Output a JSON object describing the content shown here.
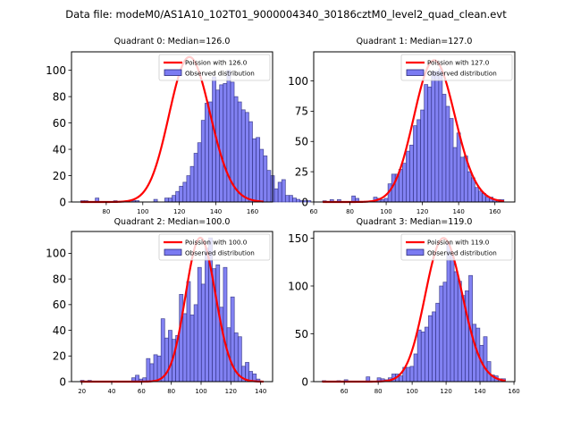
{
  "suptitle": "Data file: modeM0/AS1A10_102T01_9000004340_30186cztM0_level2_quad_clean.evt",
  "colors": {
    "bar_fill": "#7b7bf2",
    "bar_edge": "#2a2a7a",
    "poisson_line": "#ff0000",
    "axes": "#000000"
  },
  "chart_data": [
    {
      "type": "bar",
      "title": "Quadrant 0: Median=126.0",
      "median": 126.0,
      "legend": [
        "Poission with 126.0",
        "Observed distribution"
      ],
      "legend_position": "top-right",
      "xlim": [
        61,
        171
      ],
      "ylim": [
        0,
        114
      ],
      "xticks": [
        80,
        100,
        120,
        140,
        160
      ],
      "yticks": [
        0,
        20,
        40,
        60,
        80,
        100
      ],
      "bin_start": 66,
      "bin_width": 2,
      "values": [
        1,
        1,
        0,
        0,
        3,
        0,
        0,
        0,
        0,
        1,
        0,
        0,
        0,
        0,
        1,
        1,
        0,
        0,
        0,
        0,
        2,
        0,
        0,
        3,
        3,
        5,
        8,
        12,
        15,
        20,
        27,
        37,
        45,
        62,
        75,
        76,
        95,
        85,
        89,
        90,
        100,
        91,
        80,
        76,
        70,
        68,
        61,
        48,
        49,
        40,
        35,
        24,
        20,
        10,
        15,
        17,
        5,
        5,
        3,
        2,
        1,
        1,
        1
      ],
      "poisson_mean": 126.0,
      "poisson_scale": 110,
      "poisson_x": [
        66,
        166
      ]
    },
    {
      "type": "bar",
      "title": "Quadrant 1: Median=127.0",
      "median": 127.0,
      "legend": [
        "Poission with 127.0",
        "Observed distribution"
      ],
      "legend_position": "top-right",
      "xlim": [
        60,
        171
      ],
      "ylim": [
        0,
        124
      ],
      "xticks": [
        60,
        80,
        100,
        120,
        140,
        160
      ],
      "yticks": [
        0,
        25,
        50,
        75,
        100
      ],
      "bin_start": 65,
      "bin_width": 2,
      "values": [
        1,
        0,
        2,
        0,
        2,
        0,
        0,
        0,
        5,
        3,
        0,
        0,
        0,
        0,
        4,
        3,
        2,
        3,
        15,
        23,
        23,
        27,
        32,
        42,
        47,
        63,
        68,
        76,
        97,
        95,
        108,
        108,
        110,
        89,
        79,
        69,
        45,
        57,
        37,
        38,
        25,
        20,
        12,
        9,
        7,
        4,
        4,
        2,
        2,
        2
      ],
      "poisson_mean": 127.0,
      "poisson_scale": 117,
      "poisson_x": [
        65,
        165
      ]
    },
    {
      "type": "bar",
      "title": "Quadrant 2: Median=100.0",
      "median": 100.0,
      "legend": [
        "Poission with 100.0",
        "Observed distribution"
      ],
      "legend_position": "top-right",
      "xlim": [
        13,
        148
      ],
      "ylim": [
        0,
        117
      ],
      "xticks": [
        20,
        40,
        60,
        80,
        100,
        120,
        140
      ],
      "yticks": [
        0,
        20,
        40,
        60,
        80,
        100
      ],
      "bin_start": 19,
      "bin_width": 2.46,
      "values": [
        1,
        0,
        1,
        0,
        0,
        0,
        0,
        0,
        0,
        0,
        0,
        0,
        0,
        0,
        3,
        5,
        2,
        3,
        18,
        14,
        21,
        20,
        49,
        34,
        40,
        33,
        36,
        68,
        53,
        78,
        52,
        60,
        89,
        76,
        104,
        112,
        88,
        91,
        58,
        89,
        42,
        66,
        38,
        35,
        12,
        15,
        8,
        6,
        2
      ],
      "poisson_mean": 100.0,
      "poisson_scale": 112,
      "poisson_x": [
        19,
        142
      ]
    },
    {
      "type": "bar",
      "title": "Quadrant 3: Median=119.0",
      "median": 119.0,
      "legend": [
        "Poission with 119.0",
        "Observed distribution"
      ],
      "legend_position": "top-right",
      "xlim": [
        42,
        160.5
      ],
      "ylim": [
        0,
        157
      ],
      "xticks": [
        60,
        80,
        100,
        120,
        140,
        160
      ],
      "yticks": [
        0,
        50,
        100,
        150
      ],
      "bin_start": 47,
      "bin_width": 2.16,
      "values": [
        1,
        0,
        0,
        0,
        1,
        0,
        2,
        0,
        0,
        0,
        0,
        0,
        5,
        0,
        0,
        4,
        3,
        2,
        4,
        8,
        8,
        6,
        15,
        15,
        16,
        29,
        54,
        52,
        57,
        69,
        73,
        82,
        100,
        104,
        145,
        132,
        115,
        105,
        90,
        95,
        111,
        60,
        56,
        38,
        47,
        21,
        7,
        6,
        3,
        3
      ],
      "poisson_mean": 119.0,
      "poisson_scale": 150,
      "poisson_x": [
        47,
        155
      ]
    }
  ]
}
